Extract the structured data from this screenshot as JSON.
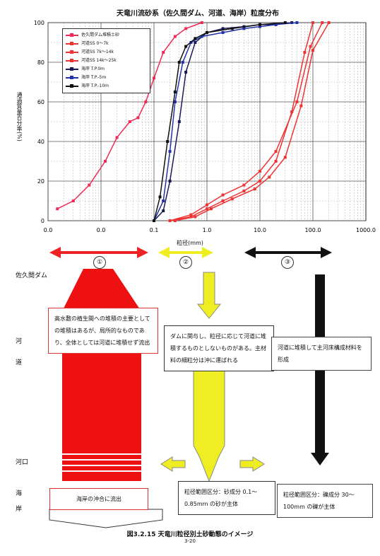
{
  "chart_data": {
    "type": "line",
    "title": "天竜川流砂系（佐久間ダム、河道、海岸）粒度分布",
    "xlabel": "粒径(mm)",
    "ylabel": "通過質量百分率(%)",
    "xscale": "log",
    "xlim": [
      0.001,
      1000
    ],
    "ylim": [
      0,
      100
    ],
    "x_ticks": [
      "0.0",
      "0.0",
      "0.1",
      "1.0",
      "10.0",
      "100.0",
      "1000.0"
    ],
    "y_ticks": [
      "0",
      "20",
      "40",
      "60",
      "80",
      "100"
    ],
    "grid": true,
    "legend_position": "top-left",
    "legend": [
      {
        "name": "佐久間ダム堆積土砂",
        "color": "#ee2a55"
      },
      {
        "name": "河道SS 0～7k",
        "color": "#ee3333"
      },
      {
        "name": "河道SS 7k～14k",
        "color": "#ee3333"
      },
      {
        "name": "河道SS 14k～25k",
        "color": "#ee3333"
      },
      {
        "name": "海岸 T.P.0m",
        "color": "#1a1a55"
      },
      {
        "name": "海岸 T.P.-5m",
        "color": "#2233aa"
      },
      {
        "name": "海岸 T.P.-10m",
        "color": "#111111"
      }
    ],
    "series": [
      {
        "name": "佐久間ダム堆積土砂",
        "color": "#ee2a55",
        "x": [
          0.0015,
          0.003,
          0.006,
          0.012,
          0.02,
          0.035,
          0.05,
          0.07,
          0.1,
          0.15,
          0.25,
          0.4,
          0.8
        ],
        "y": [
          6,
          10,
          18,
          30,
          42,
          50,
          52,
          60,
          72,
          85,
          93,
          97,
          100
        ]
      },
      {
        "name": "河道SS 0～7k",
        "color": "#ee3333",
        "x": [
          0.2,
          0.5,
          1,
          2,
          5,
          10,
          20,
          40,
          70,
          100
        ],
        "y": [
          0,
          2,
          6,
          10,
          15,
          20,
          30,
          55,
          85,
          100
        ]
      },
      {
        "name": "河道SS 7k～14k",
        "color": "#ee3333",
        "x": [
          0.2,
          0.5,
          1,
          2,
          5,
          10,
          20,
          50,
          90,
          150
        ],
        "y": [
          0,
          3,
          8,
          13,
          18,
          25,
          35,
          60,
          88,
          100
        ]
      },
      {
        "name": "河道SS 14k～25k",
        "color": "#ee3333",
        "x": [
          0.25,
          0.6,
          1.2,
          3,
          8,
          15,
          30,
          60,
          100,
          200
        ],
        "y": [
          0,
          2,
          6,
          11,
          16,
          22,
          32,
          58,
          86,
          100
        ]
      },
      {
        "name": "海岸 T.P.0m",
        "color": "#1a1a55",
        "x": [
          0.1,
          0.15,
          0.2,
          0.3,
          0.4,
          0.6,
          1,
          2,
          5,
          10,
          20,
          40
        ],
        "y": [
          0,
          5,
          20,
          50,
          75,
          90,
          95,
          97,
          98,
          99,
          99,
          100
        ]
      },
      {
        "name": "海岸 T.P.-5m",
        "color": "#2233aa",
        "x": [
          0.1,
          0.15,
          0.2,
          0.25,
          0.35,
          0.5,
          0.8,
          2,
          5,
          10,
          20,
          50
        ],
        "y": [
          0,
          10,
          35,
          60,
          80,
          90,
          93,
          95,
          97,
          98,
          99,
          100
        ]
      },
      {
        "name": "海岸 T.P.-10m",
        "color": "#111111",
        "x": [
          0.1,
          0.13,
          0.18,
          0.25,
          0.3,
          0.4,
          0.6,
          1,
          3,
          10,
          30
        ],
        "y": [
          0,
          12,
          40,
          65,
          80,
          88,
          92,
          95,
          97,
          99,
          100
        ]
      }
    ]
  },
  "zones": {
    "z1": "①",
    "z2": "②",
    "z3": "③",
    "arrow_colors": {
      "z1": "#ee2222",
      "z2": "#eeee22",
      "z3": "#111111"
    }
  },
  "rows": {
    "dam": "佐久間ダム",
    "river_1": "河",
    "river_2": "道",
    "mouth": "河口",
    "coast_1": "海",
    "coast_2": "岸"
  },
  "boxes": {
    "red_main": "高水敷の植生間への堆積の主要としての堆積はあるが、局所的なものであり、全体としては河道に堆積せず流出",
    "red_coast": "海岸の沖合に流出",
    "yellow_main": "ダムに関与し、粒径に応じて河道に堆積するものとしないものがある。主材料の細粒分は沖に運ばれる",
    "yellow_coast": "粒径範囲区分：砂成分 0.1～0.85mm の砂が主体",
    "black_main": "河道に堆積して主河床構成材料を形成",
    "black_coast": "粒径範囲区分：礫成分 30～100mm の礫が主体"
  },
  "caption": "図3.2.15  天竜川粒径別土砂動態のイメージ",
  "page_no": "3-20"
}
